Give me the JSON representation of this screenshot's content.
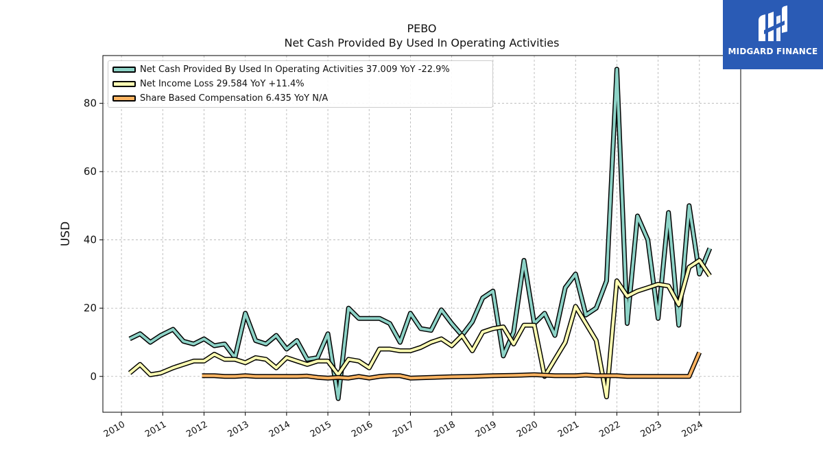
{
  "logo": {
    "text": "MIDGARD FINANCE",
    "color": "#2a5bb5"
  },
  "chart_data": {
    "type": "line",
    "title": "PEBO",
    "subtitle": "Net Cash Provided By Used In Operating Activities",
    "ylabel": "USD",
    "xlabel": "",
    "xlim": [
      2009.55,
      2025.0
    ],
    "ylim": [
      -10.5,
      94
    ],
    "yticks": [
      0,
      20,
      40,
      60,
      80
    ],
    "xticks": [
      "2010",
      "2011",
      "2012",
      "2013",
      "2014",
      "2015",
      "2016",
      "2017",
      "2018",
      "2019",
      "2020",
      "2021",
      "2022",
      "2023",
      "2024"
    ],
    "grid": true,
    "legend_position": "top-left",
    "series": [
      {
        "name": "Net Cash Provided By Used In Operating Activities",
        "legend_label": "Net Cash Provided By Used In Operating Activities  37.009 YoY -22.9%",
        "color": "#8dd3c7",
        "x": [
          2010.2,
          2010.45,
          2010.7,
          2010.95,
          2011.25,
          2011.5,
          2011.75,
          2012.0,
          2012.25,
          2012.5,
          2012.75,
          2013.0,
          2013.25,
          2013.5,
          2013.75,
          2014.0,
          2014.25,
          2014.5,
          2014.75,
          2015.0,
          2015.25,
          2015.5,
          2015.75,
          2016.0,
          2016.25,
          2016.5,
          2016.75,
          2017.0,
          2017.25,
          2017.5,
          2017.75,
          2018.0,
          2018.25,
          2018.5,
          2018.75,
          2019.0,
          2019.25,
          2019.5,
          2019.75,
          2020.0,
          2020.25,
          2020.5,
          2020.75,
          2021.0,
          2021.25,
          2021.5,
          2021.75,
          2022.0,
          2022.25,
          2022.5,
          2022.75,
          2023.0,
          2023.25,
          2023.5,
          2023.75,
          2024.0,
          2024.25
        ],
        "values": [
          11,
          12.5,
          10,
          12,
          13.8,
          10.3,
          9.5,
          11,
          9,
          9.5,
          5.5,
          18.5,
          10.5,
          9.5,
          12,
          8,
          10.5,
          5,
          5.5,
          12.5,
          -6.5,
          20,
          17,
          17,
          17,
          15.5,
          10,
          18.5,
          14,
          13.5,
          19.5,
          15.5,
          12,
          16,
          23,
          25,
          6,
          13,
          34,
          15.5,
          18.5,
          12,
          26,
          30,
          18,
          20,
          28,
          90,
          15.5,
          47,
          40,
          17,
          48,
          15,
          50,
          30,
          37.5
        ]
      },
      {
        "name": "Net Income Loss",
        "legend_label": "Net Income Loss  29.584 YoY +11.4%",
        "color": "#ffffb3",
        "x": [
          2010.2,
          2010.45,
          2010.7,
          2010.95,
          2011.25,
          2011.5,
          2011.75,
          2012.0,
          2012.25,
          2012.5,
          2012.75,
          2013.0,
          2013.25,
          2013.5,
          2013.75,
          2014.0,
          2014.25,
          2014.5,
          2014.75,
          2015.0,
          2015.25,
          2015.5,
          2015.75,
          2016.0,
          2016.25,
          2016.5,
          2016.75,
          2017.0,
          2017.25,
          2017.5,
          2017.75,
          2018.0,
          2018.25,
          2018.5,
          2018.75,
          2019.0,
          2019.25,
          2019.5,
          2019.75,
          2020.0,
          2020.25,
          2020.5,
          2020.75,
          2021.0,
          2021.25,
          2021.5,
          2021.75,
          2022.0,
          2022.25,
          2022.5,
          2022.75,
          2023.0,
          2023.25,
          2023.5,
          2023.75,
          2024.0,
          2024.25
        ],
        "values": [
          1,
          3.5,
          0.5,
          1,
          2.5,
          3.5,
          4.5,
          4.5,
          6.5,
          5,
          5,
          4,
          5.5,
          5,
          2.5,
          5.5,
          4.5,
          3.5,
          4.5,
          4.5,
          0.5,
          5,
          4.5,
          2.5,
          8,
          8,
          7.5,
          7.5,
          8.5,
          10,
          11,
          9,
          12,
          7.5,
          13,
          14,
          14.5,
          9.5,
          15,
          15,
          0,
          5,
          10,
          20.5,
          15.5,
          10.5,
          -6,
          28,
          23.5,
          25,
          26,
          27,
          26.5,
          21,
          32,
          34,
          29.5
        ]
      },
      {
        "name": "Share Based Compensation",
        "legend_label": "Share Based Compensation  6.435 YoY N/A",
        "color": "#fdb462",
        "x": [
          2011.95,
          2012.25,
          2012.5,
          2012.75,
          2013.0,
          2013.25,
          2013.5,
          2013.75,
          2014.0,
          2014.25,
          2014.5,
          2014.75,
          2015.0,
          2015.25,
          2015.5,
          2015.75,
          2016.0,
          2016.25,
          2016.5,
          2016.75,
          2017.0,
          2017.5,
          2018.0,
          2018.5,
          2019.0,
          2019.5,
          2020.0,
          2020.5,
          2021.0,
          2021.25,
          2021.5,
          2022.0,
          2022.25,
          2022.5,
          2023.0,
          2023.5,
          2023.75,
          2024.0
        ],
        "values": [
          0.2,
          0.2,
          0,
          0,
          0.2,
          0,
          0,
          0,
          0,
          0,
          0.1,
          -0.3,
          -0.5,
          -0.3,
          -0.5,
          0,
          -0.5,
          0,
          0.2,
          0.2,
          -0.5,
          -0.3,
          -0.1,
          0,
          0.2,
          0.3,
          0.5,
          0.2,
          0.2,
          0.4,
          0.2,
          0.2,
          0,
          0,
          0,
          0,
          0,
          7
        ]
      }
    ]
  }
}
